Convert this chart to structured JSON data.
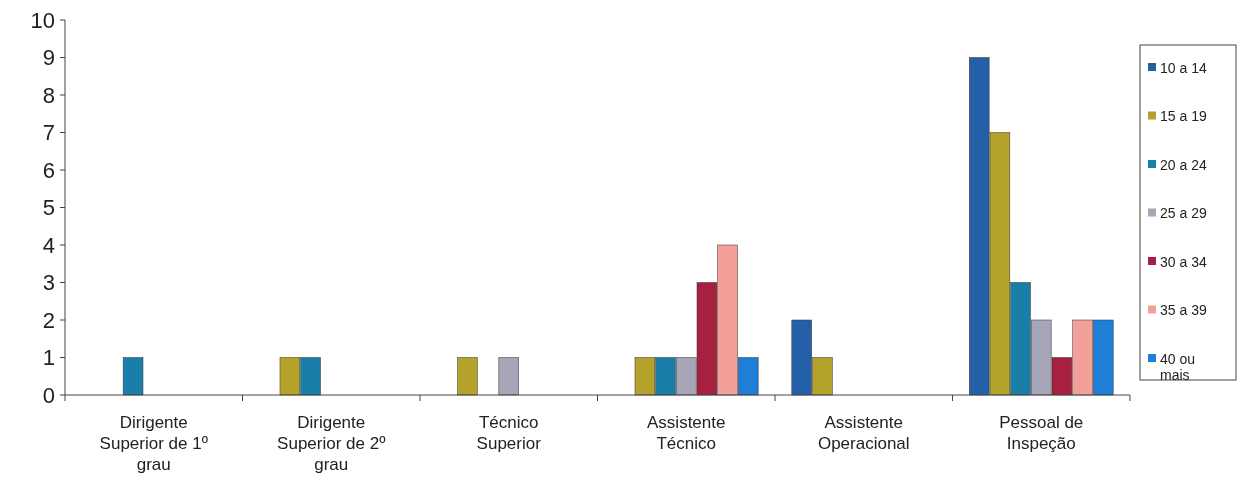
{
  "chart_data": {
    "type": "bar",
    "categories": [
      "Dirigente Superior de 1º grau",
      "Dirigente Superior de 2º grau",
      "Técnico Superior",
      "Assistente Técnico",
      "Assistente Operacional",
      "Pessoal de Inspeção"
    ],
    "series": [
      {
        "name": "10 a 14",
        "color": "#2460a7",
        "values": [
          0,
          0,
          0,
          0,
          2,
          9
        ]
      },
      {
        "name": "15 a 19",
        "color": "#b5a22a",
        "values": [
          0,
          1,
          1,
          1,
          1,
          7
        ]
      },
      {
        "name": "20 a 24",
        "color": "#1a7fa8",
        "values": [
          1,
          1,
          0,
          1,
          0,
          3
        ]
      },
      {
        "name": "25 a 29",
        "color": "#a6a6b8",
        "values": [
          0,
          0,
          1,
          1,
          0,
          2
        ]
      },
      {
        "name": "30 a 34",
        "color": "#a8203f",
        "values": [
          0,
          0,
          0,
          3,
          0,
          1
        ]
      },
      {
        "name": "35 a 39",
        "color": "#f4a09a",
        "values": [
          0,
          0,
          0,
          4,
          0,
          2
        ]
      },
      {
        "name": "40 ou mais",
        "color": "#1f7fd6",
        "values": [
          0,
          0,
          0,
          1,
          0,
          2
        ]
      }
    ],
    "ylim": [
      0,
      10
    ],
    "yticks": [
      0,
      1,
      2,
      3,
      4,
      5,
      6,
      7,
      8,
      9,
      10
    ],
    "grid": false,
    "legend": "right"
  }
}
